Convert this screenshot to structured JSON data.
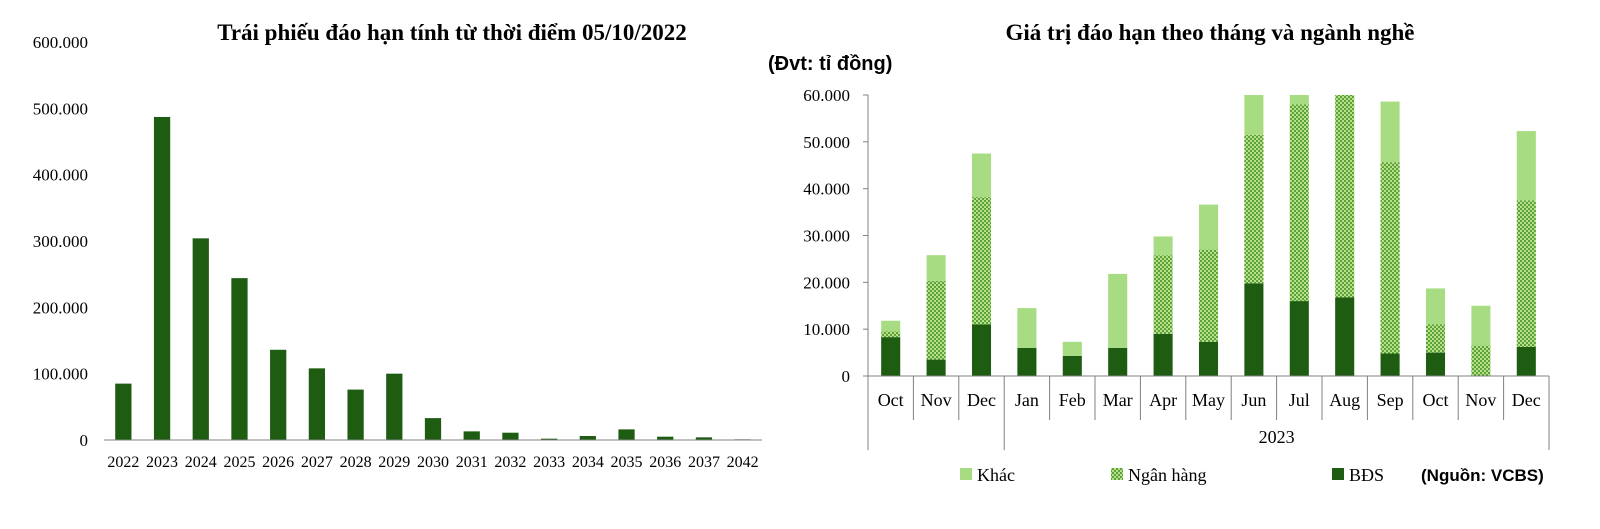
{
  "colors": {
    "dark": "#1e5c12",
    "dots": "#3f8f1f",
    "dots_bg": "#b7e08a",
    "light": "#a8dc82",
    "axis": "#808080"
  },
  "chart_data": [
    {
      "type": "bar",
      "title": "Trái phiếu đáo hạn tính từ thời điểm 05/10/2022",
      "categories": [
        "2022",
        "2023",
        "2024",
        "2025",
        "2026",
        "2027",
        "2028",
        "2029",
        "2030",
        "2031",
        "2032",
        "2033",
        "2034",
        "2035",
        "2036",
        "2037",
        "2042"
      ],
      "values": [
        85000,
        487000,
        304000,
        244000,
        136000,
        108000,
        76000,
        100000,
        33000,
        13000,
        11000,
        2000,
        6000,
        16000,
        5000,
        4000,
        1000
      ],
      "ylim": [
        0,
        600000
      ],
      "yticks": [
        "0",
        "100.000",
        "200.000",
        "300.000",
        "400.000",
        "500.000",
        "600.000"
      ],
      "grid": false
    },
    {
      "type": "bar",
      "stacked": true,
      "title": "Giá trị đáo hạn theo tháng và ngành nghề",
      "unit_label": "(Đvt: tỉ đồng)",
      "categories": [
        "Oct",
        "Nov",
        "Dec",
        "Jan",
        "Feb",
        "Mar",
        "Apr",
        "May",
        "Jun",
        "Jul",
        "Aug",
        "Sep",
        "Oct",
        "Nov",
        "Dec"
      ],
      "year_group_label": "2023",
      "series": [
        {
          "name": "BĐS",
          "values": [
            8300,
            3500,
            11000,
            6000,
            4300,
            6000,
            9000,
            7300,
            19800,
            16000,
            16800,
            4800,
            5000,
            0,
            6200
          ]
        },
        {
          "name": "Ngân hàng",
          "values": [
            1200,
            16800,
            27200,
            0,
            0,
            0,
            16800,
            19700,
            31700,
            42000,
            43200,
            40800,
            6000,
            6500,
            31300
          ]
        },
        {
          "name": "Khác",
          "values": [
            2300,
            5500,
            9300,
            8500,
            3000,
            15800,
            4000,
            9600,
            8500,
            2000,
            0,
            13000,
            7700,
            8500,
            14800
          ]
        }
      ],
      "ylim": [
        0,
        60000
      ],
      "yticks": [
        "0",
        "10.000",
        "20.000",
        "30.000",
        "40.000",
        "50.000",
        "60.000"
      ],
      "legend": [
        "Khác",
        "Ngân hàng",
        "BĐS"
      ],
      "legend_position": "bottom",
      "source": "(Nguồn: VCBS)",
      "grid": false
    }
  ]
}
